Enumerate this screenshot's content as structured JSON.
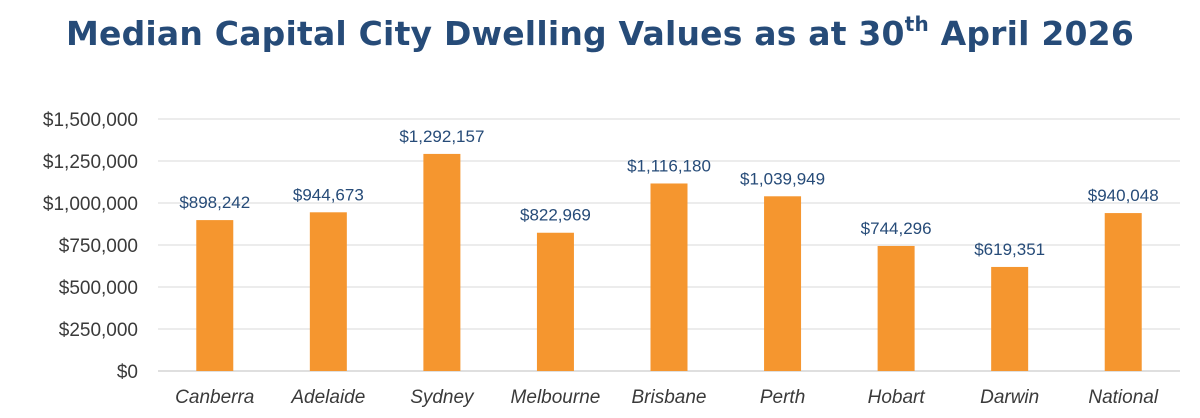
{
  "chart_data": {
    "type": "bar",
    "title_main": "Median Capital City Dwelling Values as at 30",
    "title_sup": "th",
    "title_end": " April 2026",
    "categories": [
      "Canberra",
      "Adelaide",
      "Sydney",
      "Melbourne",
      "Brisbane",
      "Perth",
      "Hobart",
      "Darwin",
      "National"
    ],
    "values": [
      898242,
      944673,
      1292157,
      822969,
      1116180,
      1039949,
      744296,
      619351,
      940048
    ],
    "data_labels": [
      "$898,242",
      "$944,673",
      "$1,292,157",
      "$822,969",
      "$1,116,180",
      "$1,039,949",
      "$744,296",
      "$619,351",
      "$940,048"
    ],
    "y_ticks": [
      0,
      250000,
      500000,
      750000,
      1000000,
      1250000,
      1500000
    ],
    "y_tick_labels": [
      "$0",
      "$250,000",
      "$500,000",
      "$750,000",
      "$1,000,000",
      "$1,250,000",
      "$1,500,000"
    ],
    "ylim": [
      0,
      1500000
    ],
    "xlabel": "",
    "ylabel": "",
    "grid": true,
    "legend": "none",
    "bar_color": "#f5962f",
    "label_color": "#264b78",
    "title_color": "#264b78",
    "grid_color": "#d9d9d9"
  }
}
